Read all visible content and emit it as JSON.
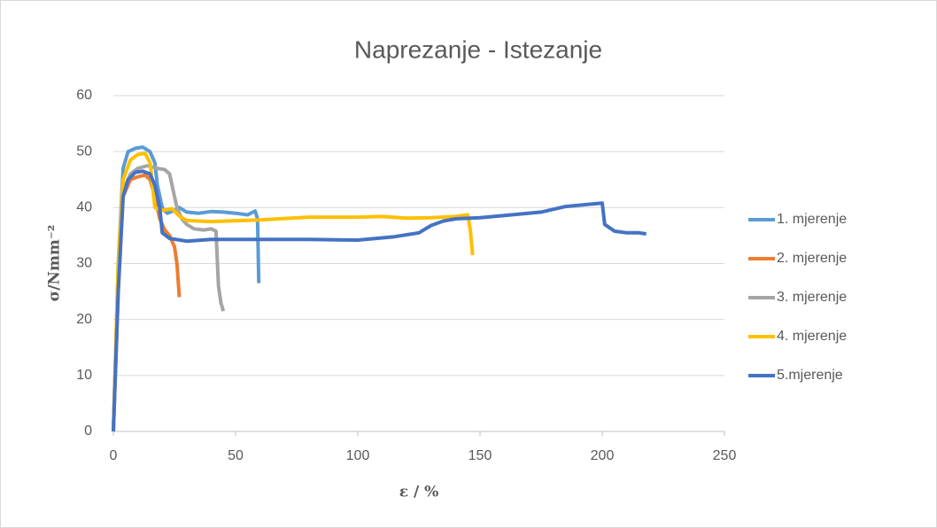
{
  "chart_data": {
    "type": "line",
    "title": "Naprezanje - Istezanje",
    "xlabel": "ε / %",
    "ylabel": "σ/Nmm⁻²",
    "xlim": [
      0,
      250
    ],
    "xticks": [
      0,
      50,
      100,
      150,
      200,
      250
    ],
    "ylim": [
      0,
      60
    ],
    "yticks": [
      0,
      10,
      20,
      30,
      40,
      50,
      60
    ],
    "grid": true,
    "legend": "right",
    "series": [
      {
        "name": "1. mjerenje",
        "color": "#5b9bd5",
        "x": [
          0,
          2,
          4,
          6,
          9,
          12,
          15,
          17,
          18,
          20,
          22,
          25,
          27,
          30,
          35,
          40,
          45,
          50,
          55,
          58,
          59,
          59.5
        ],
        "values": [
          0,
          30,
          47,
          50,
          50.6,
          50.8,
          50,
          48,
          44,
          40,
          39,
          39.5,
          40,
          39.2,
          39,
          39.3,
          39.2,
          39,
          38.7,
          39.4,
          38,
          26.5
        ]
      },
      {
        "name": "2. mjerenje",
        "color": "#ed7d31",
        "x": [
          0,
          2,
          4,
          7,
          10,
          13,
          15,
          17,
          19,
          21,
          23,
          25,
          26,
          27
        ],
        "values": [
          0,
          25,
          42,
          45,
          45.5,
          45.8,
          45,
          42,
          38,
          36,
          35,
          33,
          30,
          24
        ]
      },
      {
        "name": "3. mjerenje",
        "color": "#a5a5a5",
        "x": [
          0,
          2,
          4,
          7,
          10,
          14,
          18,
          21,
          23,
          25,
          26,
          28,
          30,
          33,
          37,
          40,
          42,
          43,
          44,
          45
        ],
        "values": [
          0,
          28,
          43,
          46,
          47,
          47.5,
          47,
          46.8,
          46,
          42,
          40,
          38,
          37,
          36.2,
          36,
          36.2,
          35.8,
          26,
          23,
          21.5
        ]
      },
      {
        "name": "4. mjerenje",
        "color": "#ffc000",
        "x": [
          0,
          2,
          4,
          7,
          10,
          13,
          15,
          16,
          17,
          20,
          24,
          27,
          30,
          40,
          60,
          80,
          100,
          110,
          120,
          130,
          140,
          145,
          146,
          147
        ],
        "values": [
          0,
          30,
          45,
          48.5,
          49.5,
          49.7,
          48,
          44,
          40,
          39.5,
          39.8,
          38.5,
          37.7,
          37.5,
          37.8,
          38.3,
          38.3,
          38.4,
          38.1,
          38.2,
          38.4,
          38.7,
          36,
          31.5
        ]
      },
      {
        "name": "5.mjerenje",
        "color": "#4472c4",
        "x": [
          0,
          2,
          4,
          6,
          9,
          12,
          15,
          17,
          19,
          20,
          23,
          30,
          40,
          60,
          80,
          100,
          115,
          125,
          130,
          135,
          140,
          150,
          160,
          175,
          185,
          195,
          200,
          201,
          205,
          210,
          215,
          218
        ],
        "values": [
          0,
          25,
          42,
          45,
          46.3,
          46.5,
          46,
          44,
          40,
          35.5,
          34.5,
          34,
          34.3,
          34.3,
          34.3,
          34.2,
          34.8,
          35.5,
          36.8,
          37.6,
          38,
          38.2,
          38.6,
          39.2,
          40.2,
          40.6,
          40.8,
          37,
          35.8,
          35.5,
          35.5,
          35.3
        ]
      }
    ]
  }
}
